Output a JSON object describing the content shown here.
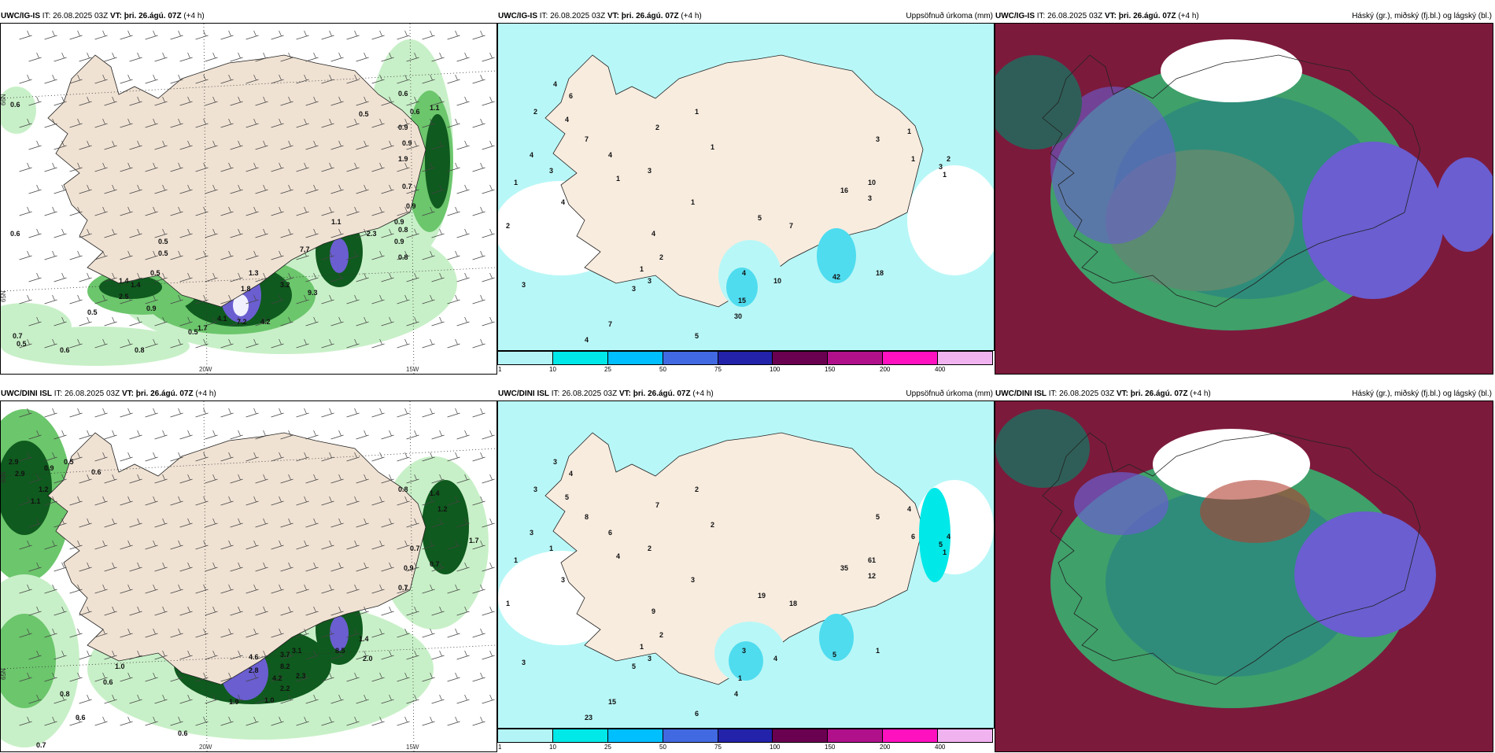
{
  "header_common": {
    "it_label": "IT:",
    "it_time": "26.08.2025 03Z",
    "vt_label": "VT:",
    "vt_time": "þri. 26.ágú. 07Z",
    "lead": "(+4 h)"
  },
  "rows": [
    {
      "model": "UWC/IG-IS",
      "wind_panel": {
        "lat_labels": [
          "66N",
          "65N"
        ],
        "lon_labels": [
          "20W",
          "15W"
        ],
        "values": [
          "0.6",
          "0.5",
          "0.6",
          "0.6",
          "0.9",
          "0.9",
          "1.1",
          "1.9",
          "0.7",
          "0.9",
          "0.9",
          "1.1",
          "2.3",
          "0.8",
          "0.9",
          "0.8",
          "0.6",
          "0.5",
          "0.5",
          "0.5",
          "1.4",
          "1.4",
          "2.5",
          "1.3",
          "1.8",
          "3.2",
          "9.3",
          "7.7",
          "0.9",
          "0.5",
          "0.7",
          "4.1",
          "7.2",
          "4.2",
          "1.7",
          "0.5",
          "0.5",
          "0.6",
          "0.8"
        ]
      },
      "precip_panel": {
        "title": "Uppsöfnuð úrkoma (mm)",
        "values": [
          "4",
          "2",
          "4",
          "3",
          "1",
          "2",
          "3",
          "6",
          "4",
          "7",
          "4",
          "1",
          "4",
          "2",
          "3",
          "1",
          "1",
          "1",
          "4",
          "2",
          "1",
          "3",
          "3",
          "4",
          "10",
          "15",
          "30",
          "18",
          "42",
          "5",
          "7",
          "4",
          "5",
          "7",
          "16",
          "10",
          "3",
          "3",
          "1",
          "1",
          "3",
          "2",
          "1"
        ]
      },
      "cloud_panel": {
        "title": "Háský (gr.), miðský (fj.bl.) og lágský (bl.)"
      }
    },
    {
      "model": "UWC/DINI ISL",
      "wind_panel": {
        "lat_labels": [
          "66N",
          "65N"
        ],
        "lon_labels": [
          "20W",
          "15W"
        ],
        "values": [
          "2.9",
          "2.9",
          "0.9",
          "0.5",
          "0.6",
          "1.2",
          "1.1",
          "0.8",
          "1.4",
          "1.2",
          "1.7",
          "0.7",
          "0.7",
          "1.0",
          "0.6",
          "0.8",
          "0.9",
          "0.7",
          "4.6",
          "3.7",
          "2.8",
          "8.2",
          "4.2",
          "2.3",
          "2.2",
          "1.9",
          "1.0",
          "0.7",
          "0.6",
          "0.6",
          "3.1",
          "8.5",
          "1.4",
          "2.0"
        ]
      },
      "precip_panel": {
        "title": "Uppsöfnuð úrkoma (mm)",
        "values": [
          "3",
          "3",
          "3",
          "1",
          "1",
          "1",
          "3",
          "4",
          "5",
          "8",
          "6",
          "4",
          "3",
          "7",
          "2",
          "2",
          "2",
          "3",
          "9",
          "2",
          "1",
          "3",
          "5",
          "3",
          "4",
          "1",
          "4",
          "1",
          "5",
          "6",
          "15",
          "23",
          "19",
          "18",
          "35",
          "61",
          "12",
          "5",
          "4",
          "6",
          "5",
          "4",
          "1"
        ]
      },
      "cloud_panel": {
        "title": "Háský (gr.), miðský (fj.bl.) og lágský (bl.)"
      }
    }
  ],
  "colorbar": {
    "ticks": [
      "1",
      "10",
      "25",
      "50",
      "75",
      "100",
      "150",
      "200",
      "400"
    ],
    "colors": [
      "#b3f5f7",
      "#00e8e8",
      "#00bfff",
      "#4169e1",
      "#2222aa",
      "#6a0050",
      "#b0108a",
      "#ff11c0",
      "#f0b3f0"
    ]
  },
  "colors": {
    "land": "#f8ecdf",
    "sea": "#ffffff",
    "precip_light": "#b8f7f7",
    "precip_mid": "#4fdcef",
    "wind_green_light": "#c8f0c8",
    "wind_green_mid": "#6cc66c",
    "wind_green_dark": "#0f5a1e",
    "cloud_high_gray": "#7e8a86",
    "cloud_mid_teal": "#2f8c7a",
    "cloud_low_maroon": "#7c1a3c",
    "cloud_purple": "#6a5ed0",
    "cloud_green": "#3fa06a"
  }
}
